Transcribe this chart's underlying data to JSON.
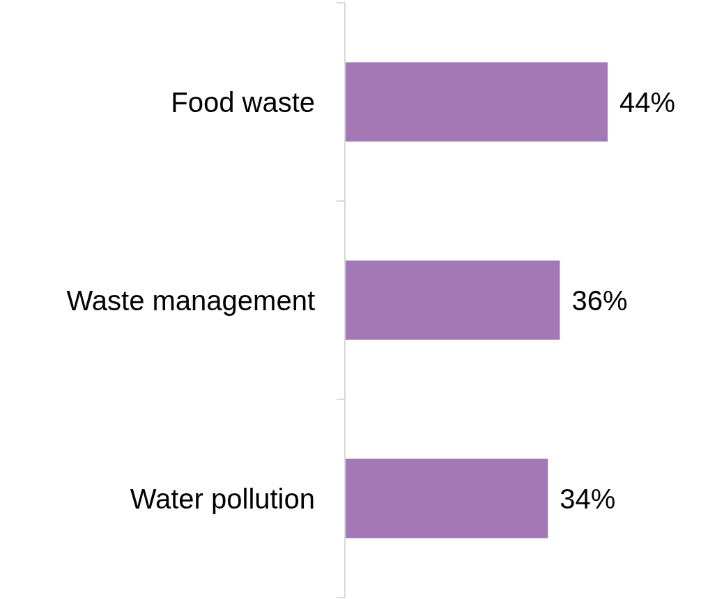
{
  "chart_data": {
    "type": "bar",
    "orientation": "horizontal",
    "categories": [
      "Food waste",
      "Waste management",
      "Water pollution"
    ],
    "values": [
      44,
      36,
      34
    ],
    "color": "#a378b4",
    "value_labels": [
      "44%",
      "36%",
      "34%"
    ]
  }
}
